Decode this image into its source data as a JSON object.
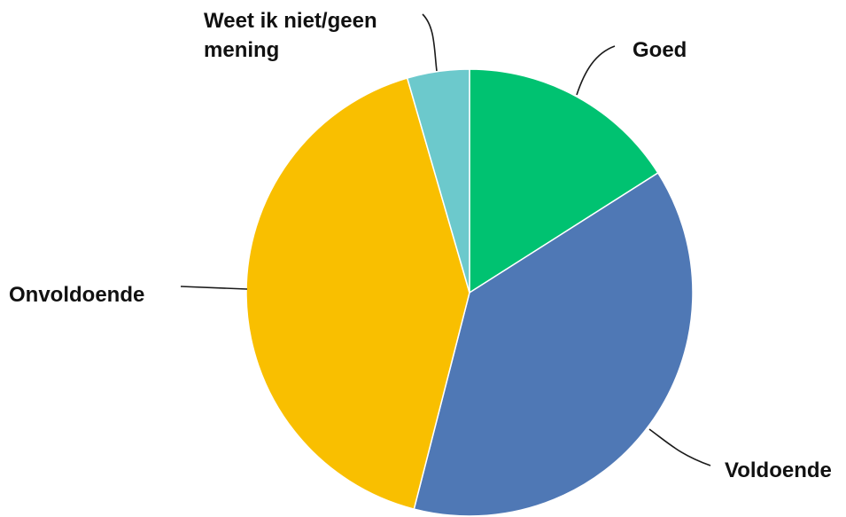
{
  "chart_data": {
    "type": "pie",
    "title": "",
    "start": "top",
    "direction": "clockwise",
    "slices": [
      {
        "label": "Goed",
        "value": 16,
        "color": "#00c271"
      },
      {
        "label": "Voldoende",
        "value": 38,
        "color": "#4f78b5"
      },
      {
        "label": "Onvoldoende",
        "value": 41.5,
        "color": "#f9bf00"
      },
      {
        "label": "Weet ik niet/geen mening",
        "label_lines": [
          "Weet ik niet/geen",
          "mening"
        ],
        "value": 4.5,
        "color": "#6cc9cc"
      }
    ],
    "legend": false,
    "data_labels": "category names with leader lines"
  }
}
